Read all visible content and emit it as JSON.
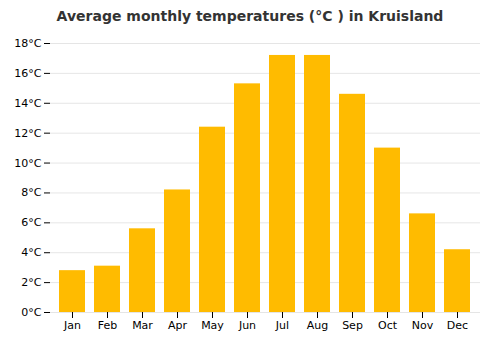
{
  "chart_data": {
    "type": "bar",
    "title": "Average monthly temperatures (°C ) in Kruisland",
    "categories": [
      "Jan",
      "Feb",
      "Mar",
      "Apr",
      "May",
      "Jun",
      "Jul",
      "Aug",
      "Sep",
      "Oct",
      "Nov",
      "Dec"
    ],
    "values": [
      2.8,
      3.1,
      5.6,
      8.2,
      12.4,
      15.3,
      17.2,
      17.2,
      14.6,
      11.0,
      6.6,
      4.2
    ],
    "color": "#FFBB00",
    "ylim": [
      0,
      18
    ],
    "yticks": [
      {
        "value": 0,
        "label": "0°C"
      },
      {
        "value": 2,
        "label": "2°C"
      },
      {
        "value": 4,
        "label": "4°C"
      },
      {
        "value": 6,
        "label": "6°C"
      },
      {
        "value": 8,
        "label": "8°C"
      },
      {
        "value": 10,
        "label": "10°C"
      },
      {
        "value": 12,
        "label": "12°C"
      },
      {
        "value": 14,
        "label": "14°C"
      },
      {
        "value": 16,
        "label": "16°C"
      },
      {
        "value": 18,
        "label": "18°C"
      }
    ],
    "grid": true
  }
}
